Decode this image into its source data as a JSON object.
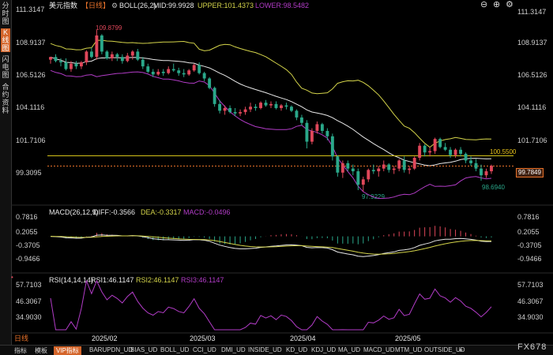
{
  "sidebar": {
    "items": [
      {
        "label": "分时图",
        "active": false
      },
      {
        "label": "K线图",
        "active": true
      },
      {
        "label": "闪电图",
        "active": false
      },
      {
        "label": "合约资料",
        "active": false
      }
    ]
  },
  "header": {
    "title": "美元指数",
    "period": "【日线】",
    "boll_label": "BOLL(26,2)",
    "mid": "MID:99.9928",
    "upper": "UPPER:101.4373",
    "lower": "LOWER:98.5482"
  },
  "top_icons": [
    "minus-icon",
    "plus-icon",
    "settings-icon"
  ],
  "price_axis": {
    "left": [
      "111.3147",
      "108.9137",
      "106.5126",
      "104.1116",
      "101.7106",
      "99.3095"
    ],
    "right": [
      "111.3147",
      "108.9137",
      "106.5126",
      "104.1116",
      "101.7106"
    ]
  },
  "price_tags": {
    "current": "99.7849",
    "hline": "100.5500",
    "high": "109.8799",
    "low": "97.9229",
    "last_low": "98.6940"
  },
  "macd": {
    "label": "MACD(26,12,9)",
    "diff": "DIFF:-0.3566",
    "dea": "DEA:-0.3317",
    "macd": "MACD:-0.0496",
    "axis": [
      "0.7816",
      "0.2055",
      "-0.3705",
      "-0.9466"
    ]
  },
  "rsi": {
    "label": "RSI(14,14,14)",
    "rsi1": "RSI1:46.1147",
    "rsi2": "RSI2:46.1147",
    "rsi3": "RSI3:46.1147",
    "axis": [
      "57.7103",
      "46.3067",
      "34.9030"
    ]
  },
  "dates": [
    "2025/02",
    "2025/03",
    "2025/04",
    "2025/05"
  ],
  "bottom": {
    "period_label": "日线",
    "tabs": [
      "指标",
      "模板",
      "VIP指标",
      "BARUPDN_UD",
      "BIAS_UD",
      "BOLL_UD",
      "CCI_UD",
      "DMI_UD",
      "INSIDE_UD",
      "KD_UD",
      "KDJ_UD",
      "MA_UD",
      "MACD_UD",
      "MTM_UD",
      "OUTSIDE_UD"
    ],
    "logo": "FX678"
  },
  "colors": {
    "up": "#e0475a",
    "down": "#2aa88a",
    "boll_mid": "#e8e8e8",
    "boll_upper": "#d4d44a",
    "boll_lower": "#b23cc7",
    "dea": "#d4d44a",
    "diff": "#e8e8e8",
    "rsi": "#b23cc7",
    "hline": "#d4c21a",
    "current": "#e8722a"
  },
  "chart_data": {
    "type": "candlestick",
    "candles": [
      [
        107.7,
        107.9,
        107.4,
        107.9
      ],
      [
        107.9,
        108.1,
        107.5,
        107.6
      ],
      [
        107.6,
        107.8,
        107.2,
        107.5
      ],
      [
        107.5,
        107.8,
        106.9,
        107.0
      ],
      [
        107.0,
        107.6,
        106.8,
        107.4
      ],
      [
        107.4,
        107.6,
        107.0,
        107.2
      ],
      [
        107.2,
        107.6,
        107.0,
        107.5
      ],
      [
        107.5,
        108.4,
        107.3,
        108.3
      ],
      [
        108.3,
        108.6,
        107.8,
        107.9
      ],
      [
        107.9,
        109.9,
        107.7,
        109.5
      ],
      [
        109.5,
        109.6,
        108.1,
        108.3
      ],
      [
        108.3,
        108.4,
        107.7,
        107.8
      ],
      [
        107.8,
        108.3,
        107.6,
        108.1
      ],
      [
        108.1,
        108.2,
        107.6,
        107.9
      ],
      [
        107.9,
        108.1,
        107.4,
        107.6
      ],
      [
        107.6,
        108.2,
        107.5,
        108.0
      ],
      [
        108.0,
        108.4,
        107.7,
        108.3
      ],
      [
        108.3,
        108.5,
        107.6,
        107.7
      ],
      [
        107.7,
        107.9,
        107.0,
        107.2
      ],
      [
        107.2,
        107.4,
        106.7,
        106.8
      ],
      [
        106.8,
        107.0,
        106.4,
        106.6
      ],
      [
        106.6,
        107.0,
        106.5,
        106.8
      ],
      [
        106.8,
        107.0,
        106.5,
        106.7
      ],
      [
        106.7,
        107.2,
        106.6,
        107.0
      ],
      [
        107.0,
        107.4,
        106.8,
        106.9
      ],
      [
        106.9,
        107.1,
        106.5,
        106.7
      ],
      [
        106.7,
        107.0,
        106.4,
        106.6
      ],
      [
        106.6,
        107.0,
        106.5,
        106.9
      ],
      [
        106.9,
        107.4,
        106.8,
        107.3
      ],
      [
        107.3,
        107.5,
        106.6,
        106.7
      ],
      [
        106.7,
        106.8,
        106.1,
        106.3
      ],
      [
        106.3,
        106.4,
        105.5,
        105.6
      ],
      [
        105.6,
        105.7,
        104.2,
        104.4
      ],
      [
        104.4,
        104.7,
        103.7,
        103.9
      ],
      [
        103.9,
        104.3,
        103.6,
        104.1
      ],
      [
        104.1,
        104.3,
        103.7,
        103.8
      ],
      [
        103.8,
        104.1,
        103.5,
        103.7
      ],
      [
        103.7,
        104.0,
        103.5,
        103.8
      ],
      [
        103.8,
        104.2,
        103.6,
        104.0
      ],
      [
        104.0,
        104.5,
        103.8,
        104.2
      ],
      [
        104.2,
        104.4,
        103.9,
        104.1
      ],
      [
        104.1,
        104.6,
        104.0,
        104.5
      ],
      [
        104.5,
        104.7,
        104.2,
        104.3
      ],
      [
        104.3,
        104.6,
        104.1,
        104.4
      ],
      [
        104.4,
        104.6,
        104.0,
        104.1
      ],
      [
        104.1,
        104.4,
        103.9,
        104.3
      ],
      [
        104.3,
        104.5,
        104.0,
        104.2
      ],
      [
        104.2,
        104.3,
        103.8,
        103.9
      ],
      [
        103.9,
        104.0,
        103.2,
        103.4
      ],
      [
        103.4,
        103.6,
        102.8,
        103.0
      ],
      [
        103.0,
        103.2,
        101.1,
        101.6
      ],
      [
        101.6,
        102.6,
        101.4,
        102.4
      ],
      [
        102.4,
        103.1,
        102.2,
        102.9
      ],
      [
        102.9,
        103.0,
        102.2,
        102.4
      ],
      [
        102.4,
        102.6,
        101.7,
        102.0
      ],
      [
        102.0,
        102.2,
        100.2,
        100.5
      ],
      [
        100.5,
        100.6,
        99.0,
        99.3
      ],
      [
        99.3,
        100.2,
        98.9,
        100.0
      ],
      [
        100.0,
        100.2,
        99.4,
        99.6
      ],
      [
        99.6,
        99.9,
        99.1,
        99.4
      ],
      [
        99.4,
        99.6,
        98.0,
        98.4
      ],
      [
        98.4,
        99.0,
        97.9,
        98.8
      ],
      [
        98.8,
        99.6,
        98.6,
        99.5
      ],
      [
        99.5,
        99.9,
        99.2,
        99.4
      ],
      [
        99.4,
        99.8,
        99.0,
        99.6
      ],
      [
        99.6,
        100.2,
        99.4,
        99.9
      ],
      [
        99.9,
        100.0,
        99.3,
        99.5
      ],
      [
        99.5,
        99.8,
        99.2,
        99.6
      ],
      [
        99.6,
        100.3,
        99.4,
        100.2
      ],
      [
        100.2,
        100.5,
        99.3,
        99.5
      ],
      [
        99.5,
        99.8,
        99.2,
        99.6
      ],
      [
        99.6,
        100.5,
        99.5,
        100.4
      ],
      [
        100.4,
        101.5,
        100.2,
        101.3
      ],
      [
        101.3,
        101.4,
        100.5,
        100.8
      ],
      [
        100.8,
        101.2,
        100.5,
        100.9
      ],
      [
        100.9,
        101.9,
        100.7,
        101.8
      ],
      [
        101.8,
        101.9,
        101.1,
        101.2
      ],
      [
        101.2,
        101.5,
        100.9,
        101.0
      ],
      [
        101.0,
        101.2,
        100.4,
        100.6
      ],
      [
        100.6,
        101.1,
        100.4,
        101.0
      ],
      [
        101.0,
        101.2,
        100.5,
        100.7
      ],
      [
        100.7,
        100.8,
        100.0,
        100.2
      ],
      [
        100.2,
        100.5,
        99.8,
        100.0
      ],
      [
        100.0,
        100.3,
        99.4,
        99.6
      ],
      [
        99.6,
        99.9,
        98.7,
        99.1
      ],
      [
        99.1,
        99.6,
        98.9,
        99.4
      ],
      [
        99.4,
        99.9,
        99.2,
        99.8
      ]
    ],
    "ylim": [
      97.0,
      111.3147
    ],
    "boll": {
      "mid_last": 99.9928,
      "upper_last": 101.4373,
      "lower_last": 98.5482
    },
    "hline": 100.55,
    "current": 99.7849
  }
}
